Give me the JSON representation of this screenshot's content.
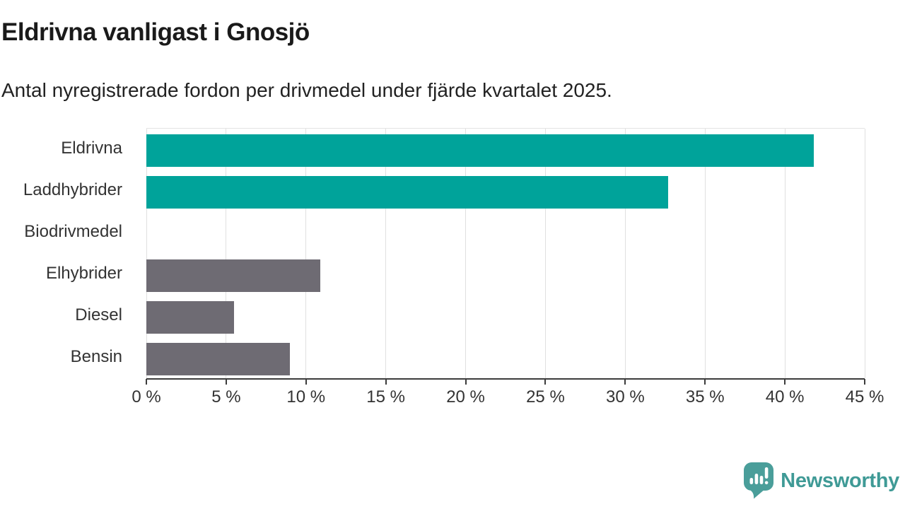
{
  "header": {
    "title": "Eldrivna vanligast i Gnosjö",
    "subtitle": "Antal nyregistrerade fordon per drivmedel under fjärde kvartalet 2025."
  },
  "chart_data": {
    "type": "bar",
    "orientation": "horizontal",
    "title": "Eldrivna vanligast i Gnosjö",
    "subtitle": "Antal nyregistrerade fordon per drivmedel under fjärde kvartalet 2025.",
    "categories": [
      "Eldrivna",
      "Laddhybrider",
      "Biodrivmedel",
      "Elhybrider",
      "Diesel",
      "Bensin"
    ],
    "values": [
      41.8,
      32.7,
      0,
      10.9,
      5.5,
      9.0
    ],
    "unit": "%",
    "highlighted": [
      true,
      true,
      false,
      false,
      false,
      false
    ],
    "xlim": [
      0,
      45
    ],
    "x_tick_step": 5,
    "x_tick_labels": [
      "0 %",
      "5 %",
      "10 %",
      "15 %",
      "20 %",
      "25 %",
      "30 %",
      "35 %",
      "40 %",
      "45 %"
    ],
    "grid": true,
    "legend_position": "none",
    "xlabel": "",
    "ylabel": ""
  },
  "colors": {
    "highlight_bar": "#00a39a",
    "default_bar": "#6e6b73",
    "grid_line": "#e0e0e0",
    "axis_line": "#3c3c3c",
    "tick_text": "#333333",
    "title_text": "#1a1a1a",
    "logo_teal": "#4a9e9a",
    "logo_text_teal": "#3f9a96"
  },
  "footer": {
    "brand": "Newsworthy"
  }
}
